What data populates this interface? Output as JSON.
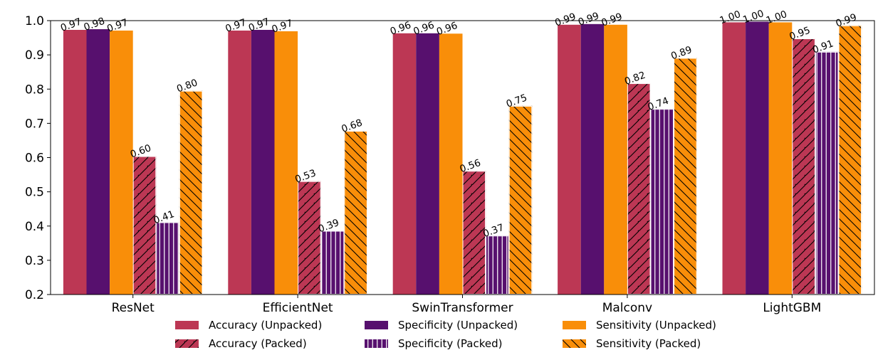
{
  "chart_data": {
    "type": "bar",
    "categories": [
      "ResNet",
      "EfficientNet",
      "SwinTransformer",
      "Malconv",
      "LightGBM"
    ],
    "series": [
      {
        "name": "Accuracy (Unpacked)",
        "color": "#bc3754",
        "hatch": "none",
        "values": [
          0.973,
          0.971,
          0.963,
          0.988,
          0.995
        ],
        "labels": [
          "0.97",
          "0.97",
          "0.96",
          "0.99",
          "1.00"
        ]
      },
      {
        "name": "Specificity (Unpacked)",
        "color": "#57106e",
        "hatch": "none",
        "values": [
          0.975,
          0.973,
          0.963,
          0.99,
          0.997
        ],
        "labels": [
          "0.98",
          "0.97",
          "0.96",
          "0.99",
          "1.00"
        ]
      },
      {
        "name": "Sensitivity (Unpacked)",
        "color": "#f98e09",
        "hatch": "none",
        "values": [
          0.971,
          0.969,
          0.962,
          0.988,
          0.995
        ],
        "labels": [
          "0.97",
          "0.97",
          "0.96",
          "0.99",
          "1.00"
        ]
      },
      {
        "name": "Accuracy (Packed)",
        "color": "#bc3754",
        "hatch": "forward-slash",
        "values": [
          0.604,
          0.531,
          0.561,
          0.817,
          0.948
        ],
        "labels": [
          "0.60",
          "0.53",
          "0.56",
          "0.82",
          "0.95"
        ]
      },
      {
        "name": "Specificity (Packed)",
        "color": "#57106e",
        "hatch": "vertical-lines",
        "values": [
          0.411,
          0.386,
          0.372,
          0.742,
          0.909
        ],
        "labels": [
          "0.41",
          "0.39",
          "0.37",
          "0.74",
          "0.91"
        ]
      },
      {
        "name": "Sensitivity (Packed)",
        "color": "#f98e09",
        "hatch": "back-slash",
        "values": [
          0.795,
          0.678,
          0.751,
          0.891,
          0.986
        ],
        "labels": [
          "0.80",
          "0.68",
          "0.75",
          "0.89",
          "0.99"
        ]
      }
    ],
    "ylim": [
      0.2,
      1.0
    ],
    "yticks": [
      "0.2",
      "0.3",
      "0.4",
      "0.5",
      "0.6",
      "0.7",
      "0.8",
      "0.9",
      "1.0"
    ],
    "ytick_values": [
      0.2,
      0.3,
      0.4,
      0.5,
      0.6,
      0.7,
      0.8,
      0.9,
      1.0
    ],
    "title": "",
    "xlabel": "",
    "ylabel": "",
    "grid": false,
    "legend": {
      "placement": "bottom-center",
      "columns": 3,
      "entries": [
        [
          "Accuracy (Unpacked)",
          "Specificity (Unpacked)",
          "Sensitivity (Unpacked)"
        ],
        [
          "Accuracy (Packed)",
          "Specificity (Packed)",
          "Sensitivity (Packed)"
        ]
      ]
    }
  }
}
